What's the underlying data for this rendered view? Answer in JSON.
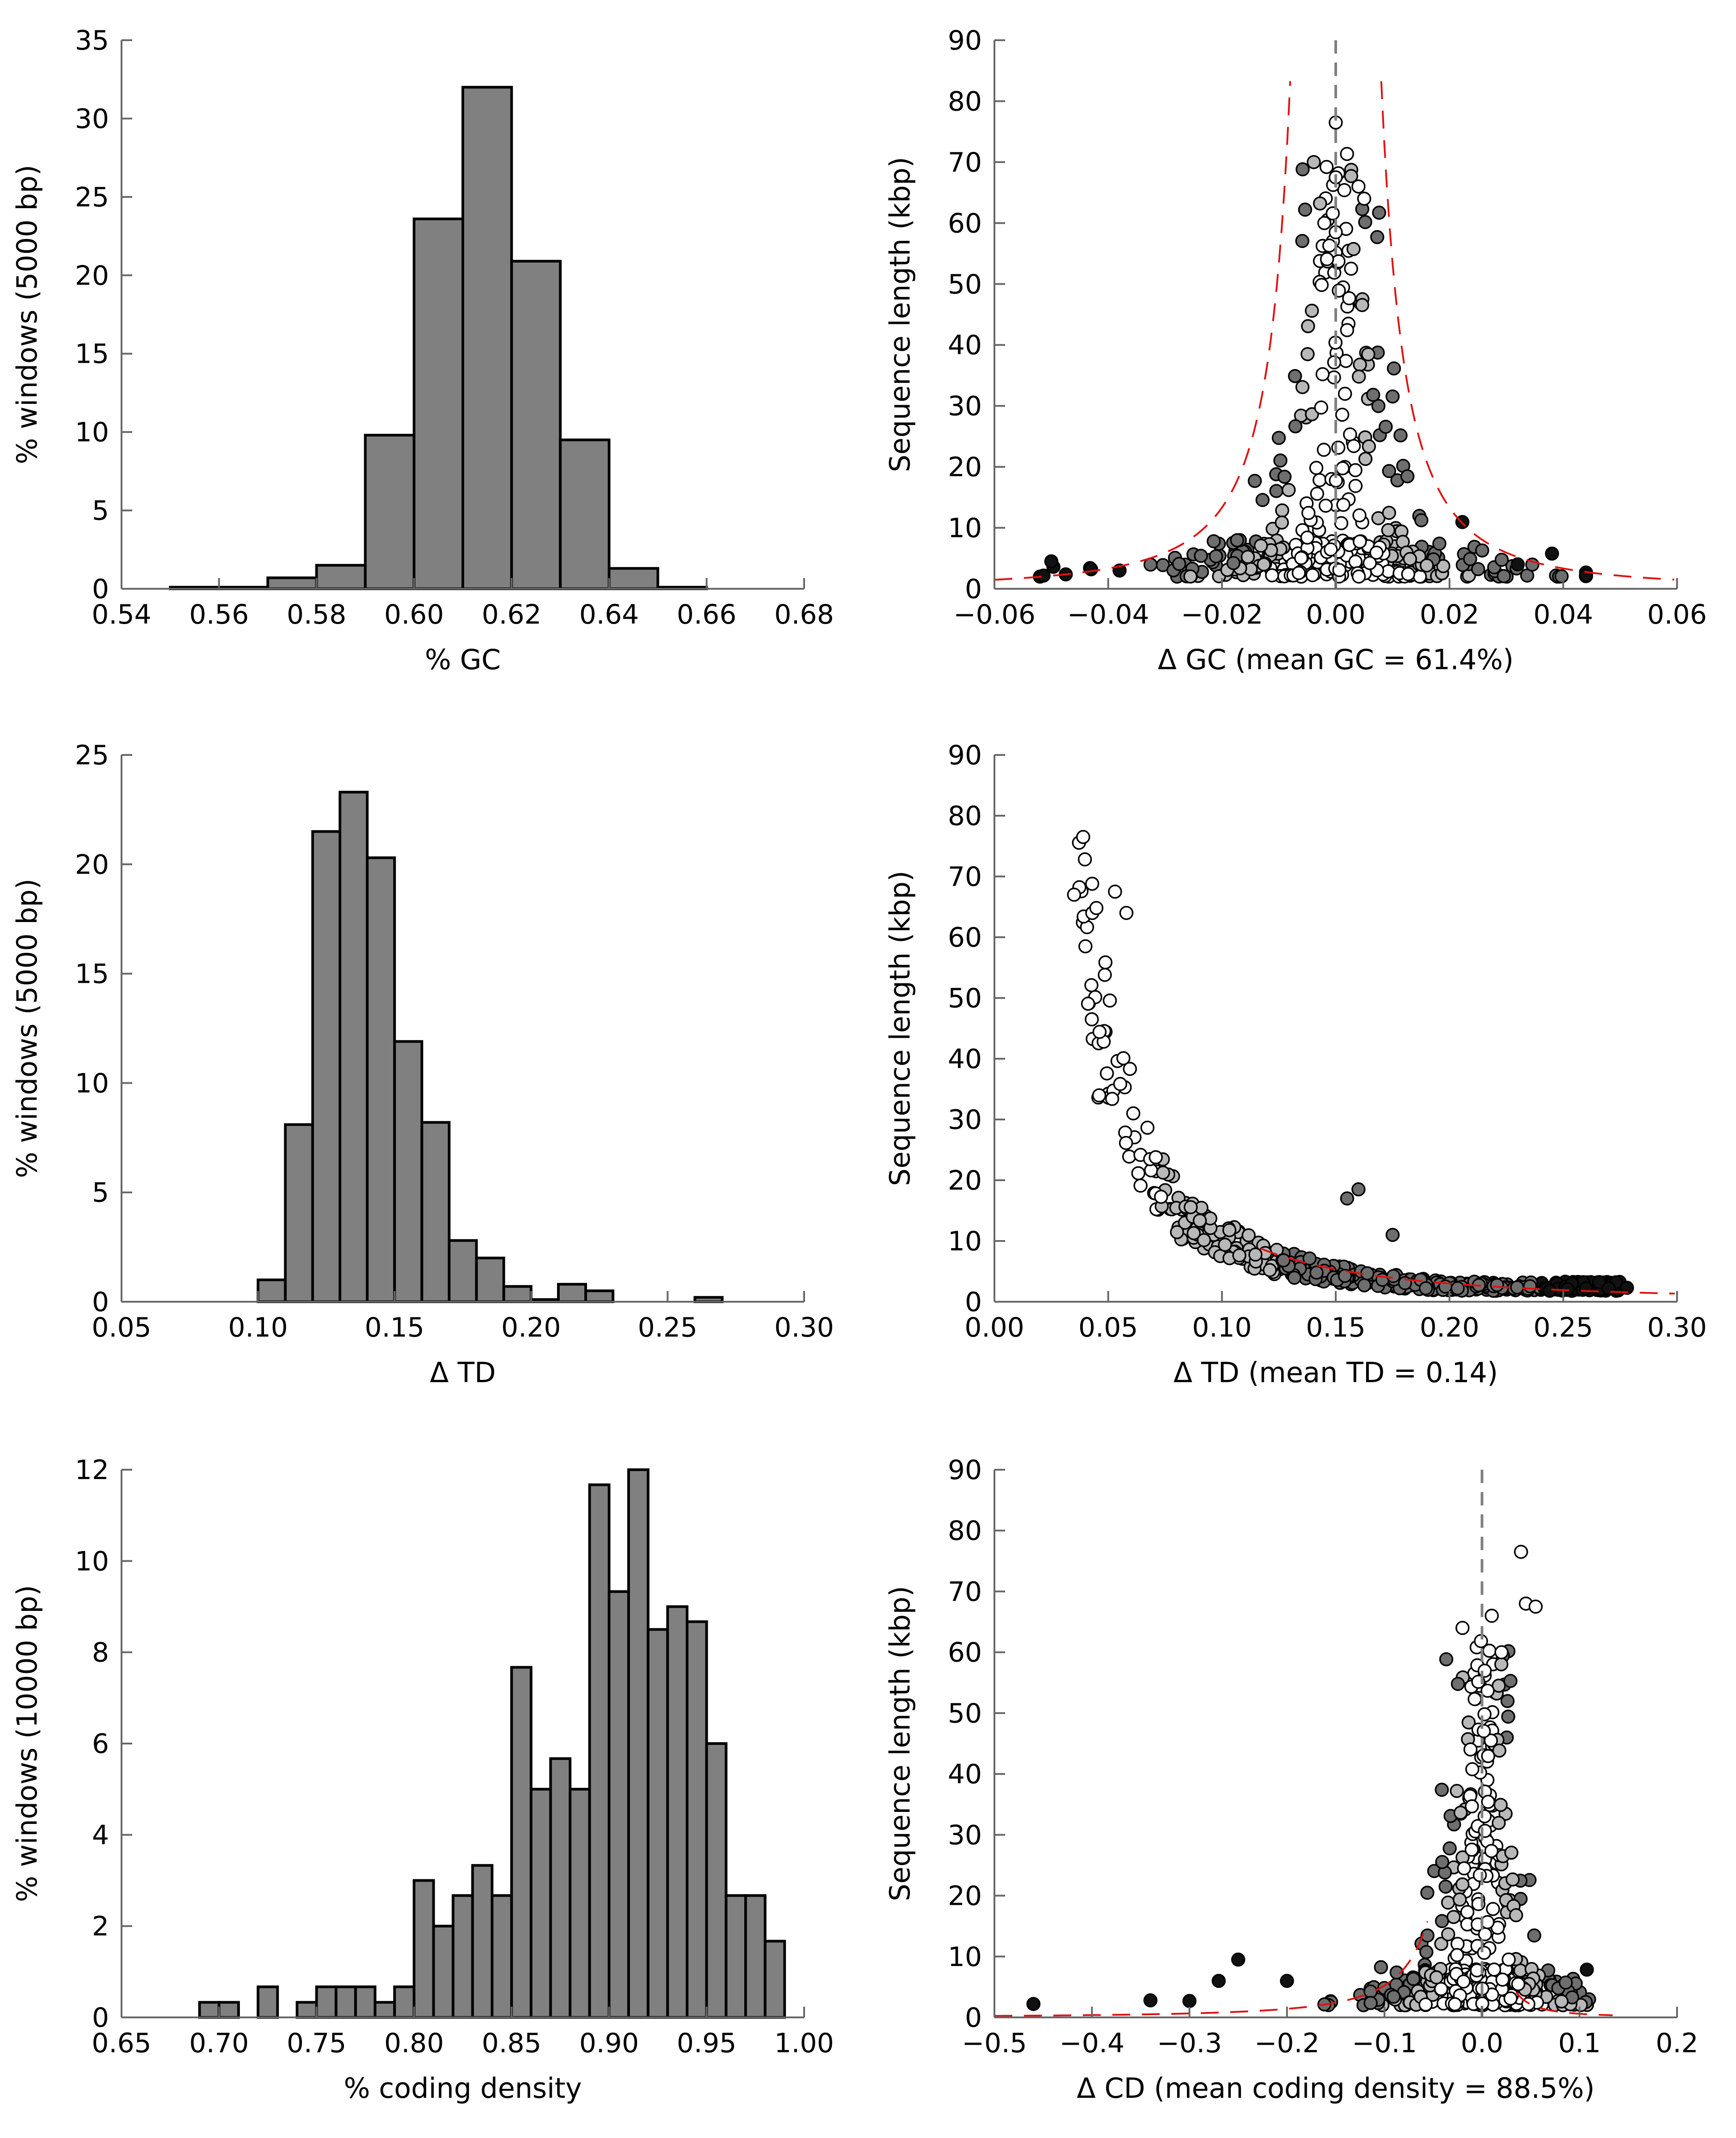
{
  "chart_data": [
    {
      "id": "gc-hist",
      "type": "bar",
      "xlabel": "% GC",
      "ylabel": "% windows (5000 bp)",
      "xlim": [
        0.54,
        0.68
      ],
      "ylim": [
        0,
        35
      ],
      "xticks": [
        "0.54",
        "0.56",
        "0.58",
        "0.60",
        "0.62",
        "0.64",
        "0.66",
        "0.68"
      ],
      "yticks": [
        "0",
        "5",
        "10",
        "15",
        "20",
        "25",
        "30",
        "35"
      ],
      "bin_edges": [
        0.55,
        0.56,
        0.57,
        0.58,
        0.59,
        0.6,
        0.61,
        0.62,
        0.63,
        0.64,
        0.65,
        0.66
      ],
      "values": [
        0.1,
        0.1,
        0.7,
        1.5,
        9.8,
        23.6,
        32.0,
        20.9,
        9.5,
        1.3,
        0.1
      ],
      "bar_color": "#808080"
    },
    {
      "id": "gc-scatter",
      "type": "scatter",
      "xlabel": "Δ GC (mean GC = 61.4%)",
      "ylabel": "Sequence length (kbp)",
      "xlim": [
        -0.06,
        0.06
      ],
      "ylim": [
        0,
        90
      ],
      "xticks": [
        "−0.06",
        "−0.04",
        "−0.02",
        "0.00",
        "0.02",
        "0.04",
        "0.06"
      ],
      "yticks": [
        "0",
        "10",
        "20",
        "30",
        "40",
        "50",
        "60",
        "70",
        "80",
        "90"
      ],
      "center_line": 0.0,
      "bound_color": "#e01010",
      "point_colors": {
        "inner": "#ffffff",
        "mid": "#b8b8b8",
        "outer": "#6e6e6e",
        "extreme": "#111111"
      }
    },
    {
      "id": "td-hist",
      "type": "bar",
      "xlabel": "Δ TD",
      "ylabel": "% windows (5000 bp)",
      "xlim": [
        0.05,
        0.3
      ],
      "ylim": [
        0,
        25
      ],
      "xticks": [
        "0.05",
        "0.10",
        "0.15",
        "0.20",
        "0.25",
        "0.30"
      ],
      "yticks": [
        "0",
        "5",
        "10",
        "15",
        "20",
        "25"
      ],
      "bin_edges": [
        0.1,
        0.11,
        0.12,
        0.13,
        0.14,
        0.15,
        0.16,
        0.17,
        0.18,
        0.19,
        0.2,
        0.21,
        0.22,
        0.23,
        0.24,
        0.25,
        0.26,
        0.27
      ],
      "values": [
        1.0,
        8.1,
        21.5,
        23.3,
        20.3,
        11.9,
        8.2,
        2.8,
        2.0,
        0.7,
        0.1,
        0.8,
        0.5,
        0.0,
        0.0,
        0.0,
        0.2
      ],
      "bar_color": "#808080"
    },
    {
      "id": "td-scatter",
      "type": "scatter",
      "xlabel": "Δ TD (mean TD = 0.14)",
      "ylabel": "Sequence length (kbp)",
      "xlim": [
        0.0,
        0.3
      ],
      "ylim": [
        0,
        90
      ],
      "xticks": [
        "0.00",
        "0.05",
        "0.10",
        "0.15",
        "0.20",
        "0.25",
        "0.30"
      ],
      "yticks": [
        "0",
        "10",
        "20",
        "30",
        "40",
        "50",
        "60",
        "70",
        "80",
        "90"
      ],
      "bound_color": "#e01010",
      "point_colors": {
        "inner": "#ffffff",
        "mid": "#b8b8b8",
        "outer": "#6e6e6e",
        "extreme": "#111111"
      }
    },
    {
      "id": "cd-hist",
      "type": "bar",
      "xlabel": "% coding density",
      "ylabel": "% windows (10000 bp)",
      "xlim": [
        0.65,
        1.0
      ],
      "ylim": [
        0,
        12
      ],
      "xticks": [
        "0.65",
        "0.70",
        "0.75",
        "0.80",
        "0.85",
        "0.90",
        "0.95",
        "1.00"
      ],
      "yticks": [
        "0",
        "2",
        "4",
        "6",
        "8",
        "10",
        "12"
      ],
      "bin_edges": [
        0.69,
        0.7,
        0.71,
        0.72,
        0.73,
        0.74,
        0.75,
        0.76,
        0.77,
        0.78,
        0.79,
        0.8,
        0.81,
        0.82,
        0.83,
        0.84,
        0.85,
        0.86,
        0.87,
        0.88,
        0.89,
        0.9,
        0.91,
        0.92,
        0.93,
        0.94,
        0.95,
        0.96,
        0.97,
        0.98,
        0.99
      ],
      "values": [
        0.33,
        0.33,
        0.0,
        0.67,
        0.0,
        0.33,
        0.67,
        0.67,
        0.67,
        0.33,
        0.67,
        3.0,
        2.0,
        2.67,
        3.33,
        2.67,
        7.67,
        5.0,
        5.67,
        5.0,
        11.67,
        9.33,
        12.0,
        8.5,
        9.0,
        8.67,
        6.0,
        2.67,
        2.67,
        1.67,
        1.33
      ],
      "bar_color": "#808080"
    },
    {
      "id": "cd-scatter",
      "type": "scatter",
      "xlabel": "Δ CD (mean coding density = 88.5%)",
      "ylabel": "Sequence length (kbp)",
      "xlim": [
        -0.5,
        0.2
      ],
      "ylim": [
        0,
        90
      ],
      "xticks": [
        "−0.5",
        "−0.4",
        "−0.3",
        "−0.2",
        "−0.1",
        "0.0",
        "0.1",
        "0.2"
      ],
      "yticks": [
        "0",
        "10",
        "20",
        "30",
        "40",
        "50",
        "60",
        "70",
        "80",
        "90"
      ],
      "center_line": 0.0,
      "bound_color": "#e01010",
      "point_colors": {
        "inner": "#ffffff",
        "mid": "#b8b8b8",
        "outer": "#6e6e6e",
        "extreme": "#111111"
      }
    }
  ]
}
